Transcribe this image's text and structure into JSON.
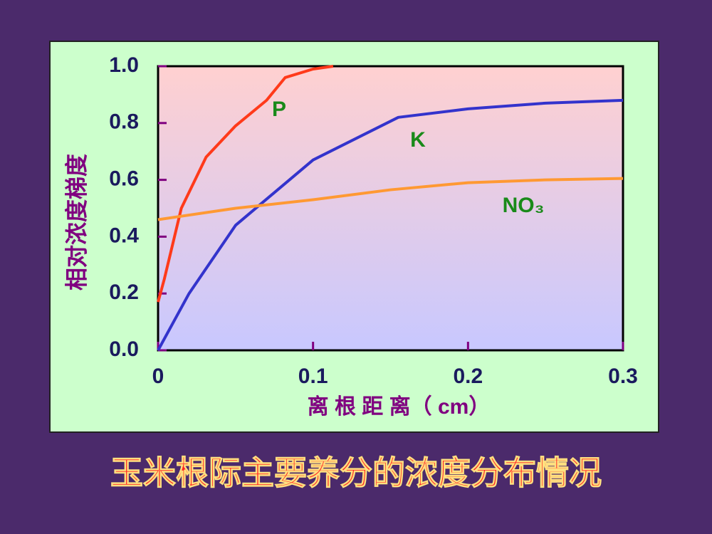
{
  "chart_data": {
    "type": "line",
    "title": "玉米根际主要养分的浓度分布情况",
    "x_label": "离 根 距 离（ cm）",
    "y_label": "相对浓度梯度",
    "xlim": [
      0,
      0.3
    ],
    "ylim": [
      0,
      1
    ],
    "xticks": [
      0,
      0.1,
      0.2,
      0.3
    ],
    "yticks": [
      {
        "value": 0,
        "label": "0.0"
      },
      0.2,
      0.4,
      0.6,
      0.8,
      {
        "value": 1,
        "label": "1.0"
      }
    ],
    "series": [
      {
        "name": "P",
        "color": "#ff3a1a",
        "x": [
          0,
          0.004,
          0.015,
          0.031,
          0.05,
          0.07,
          0.082,
          0.1,
          0.113
        ],
        "values": [
          0.17,
          0.25,
          0.5,
          0.68,
          0.79,
          0.88,
          0.96,
          0.99,
          1.0
        ]
      },
      {
        "name": "K",
        "color": "#3333cc",
        "x": [
          0,
          0.02,
          0.05,
          0.1,
          0.155,
          0.2,
          0.25,
          0.3
        ],
        "values": [
          0,
          0.2,
          0.44,
          0.67,
          0.82,
          0.85,
          0.87,
          0.88
        ]
      },
      {
        "name": "NO₃",
        "color": "#ff9933",
        "x": [
          0,
          0.05,
          0.1,
          0.15,
          0.2,
          0.25,
          0.3
        ],
        "values": [
          0.46,
          0.5,
          0.53,
          0.565,
          0.59,
          0.6,
          0.605
        ]
      }
    ]
  }
}
